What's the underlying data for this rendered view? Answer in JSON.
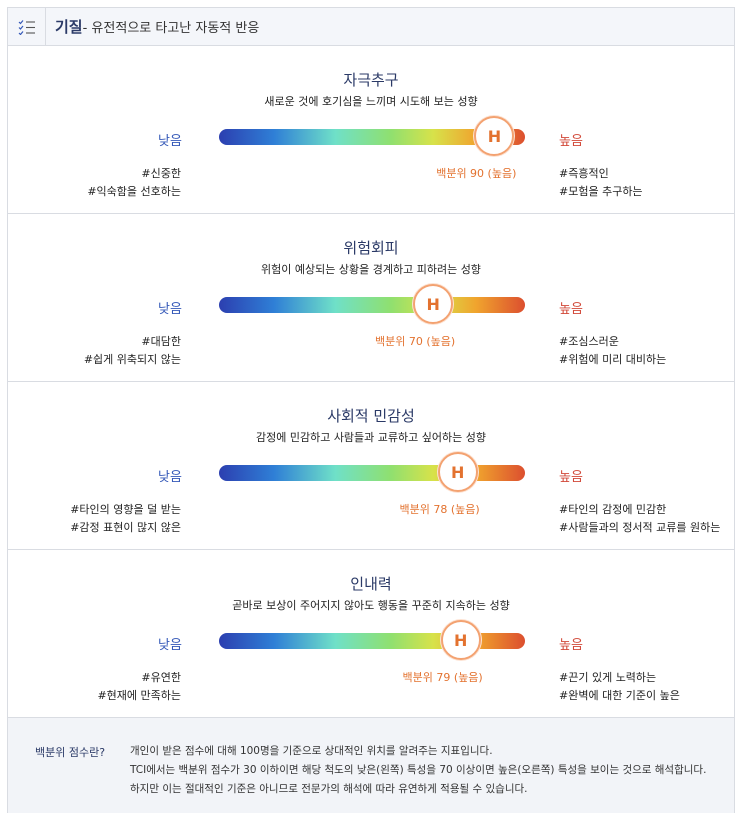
{
  "header": {
    "title": "기질",
    "subtitle": "- 유전적으로 타고난 자동적 반응",
    "icon": "checklist-icon"
  },
  "traits": [
    {
      "title": "자극추구",
      "description": "새로운 것에 호기심을 느끼며 시도해 보는 성향",
      "low_label": "낮음",
      "high_label": "높음",
      "marker_label": "H",
      "percentile": 90,
      "percentile_text": "백분위 90 (높음)",
      "low_tags": [
        "#신중한",
        "#익숙함을 선호하는"
      ],
      "high_tags": [
        "#즉흥적인",
        "#모험을 추구하는"
      ]
    },
    {
      "title": "위험회피",
      "description": "위험이 예상되는 상황을 경계하고 피하려는 성향",
      "low_label": "낮음",
      "high_label": "높음",
      "marker_label": "H",
      "percentile": 70,
      "percentile_text": "백분위 70 (높음)",
      "low_tags": [
        "#대담한",
        "#쉽게 위축되지 않는"
      ],
      "high_tags": [
        "#조심스러운",
        "#위험에 미리 대비하는"
      ]
    },
    {
      "title": "사회적 민감성",
      "description": "감정에 민감하고 사람들과 교류하고 싶어하는 성향",
      "low_label": "낮음",
      "high_label": "높음",
      "marker_label": "H",
      "percentile": 78,
      "percentile_text": "백분위 78 (높음)",
      "low_tags": [
        "#타인의 영향을 덜 받는",
        "#감정 표현이 많지 않은"
      ],
      "high_tags": [
        "#타인의 감정에 민감한",
        "#사람들과의 정서적 교류를 원하는"
      ]
    },
    {
      "title": "인내력",
      "description": "곧바로 보상이 주어지지 않아도 행동을 꾸준히 지속하는 성향",
      "low_label": "낮음",
      "high_label": "높음",
      "marker_label": "H",
      "percentile": 79,
      "percentile_text": "백분위 79 (높음)",
      "low_tags": [
        "#유연한",
        "#현재에 만족하는"
      ],
      "high_tags": [
        "#끈기 있게 노력하는",
        "#완벽에 대한 기준이 높은"
      ]
    }
  ],
  "footer": {
    "label": "백분위 점수란?",
    "lines": [
      "개인이 받은 점수에 대해 100명을 기준으로 상대적인 위치를 알려주는 지표입니다.",
      "TCI에서는 백분위 점수가 30 이하이면 해당 척도의 낮은(왼쪽) 특성을 70 이상이면 높은(오른쪽) 특성을 보이는 것으로 해석합니다.",
      "하지만 이는 절대적인 기준은 아니므로 전문가의 해석에 따라 유연하게 적용될 수 있습니다."
    ]
  },
  "colors": {
    "accent_navy": "#2b3a67",
    "low_blue": "#3559b8",
    "high_red": "#d24a3a",
    "marker_orange": "#e3722f"
  }
}
